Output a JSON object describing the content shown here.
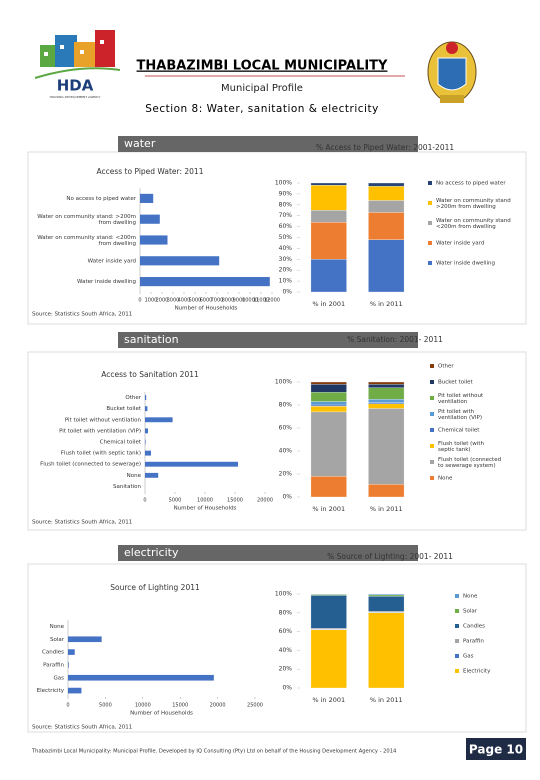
{
  "header": {
    "title": "THABAZIMBI LOCAL MUNICIPALITY",
    "subtitle": "Municipal Profile",
    "section": "Section 8: Water, sanitation & electricity",
    "logo": "HDA",
    "logo_caption": "HOUSING DEVELOPMENT AGENCY"
  },
  "sections": [
    {
      "banner": "water",
      "source": "Source: Statistics South Africa, 2011"
    },
    {
      "banner": "sanitation",
      "source": "Source: Statistics South Africa, 2011"
    },
    {
      "banner": "electricity",
      "source": "Source: Statistics South Africa, 2011"
    }
  ],
  "footer": {
    "text": "Thabazimbi Local Municipality: Municipal Profile. Developed by IQ Consulting (Pty) Ltd on behalf of the Housing Development Agency - 2014",
    "page": "Page 10"
  },
  "chart_data": [
    {
      "type": "bar",
      "orientation": "horizontal",
      "title": "Access to Piped Water: 2011",
      "categories": [
        "No access to piped water",
        "Water on community stand: >200m from dwelling",
        "Water on community stand: <200m from dwelling",
        "Water inside yard",
        "Water inside dwelling"
      ],
      "values": [
        1200,
        1800,
        2500,
        7200,
        11800
      ],
      "color": "#4472c4",
      "xlim": [
        0,
        12000
      ],
      "xticks": [
        0,
        1000,
        2000,
        3000,
        4000,
        5000,
        6000,
        7000,
        8000,
        9000,
        10000,
        11000,
        12000
      ],
      "xlabel": "Number of Households"
    },
    {
      "type": "bar",
      "stacked": true,
      "title": "% Access to Piped Water: 2001-2011",
      "categories": [
        "% in 2001",
        "% in 2011"
      ],
      "series": [
        {
          "name": "No access to piped water",
          "color": "#264478",
          "values": [
            2,
            3
          ]
        },
        {
          "name": "Water on community stand >200m from dwelling",
          "color": "#ffc000",
          "values": [
            23,
            13
          ]
        },
        {
          "name": "Water on community stand <200m from dwelling",
          "color": "#a5a5a5",
          "values": [
            11,
            11
          ]
        },
        {
          "name": "Water inside yard",
          "color": "#ed7d31",
          "values": [
            34,
            25
          ]
        },
        {
          "name": "Water inside dwelling",
          "color": "#4472c4",
          "values": [
            30,
            48
          ]
        }
      ],
      "ylim": [
        0,
        100
      ],
      "yticks": [
        {
          "value": 0,
          "label": "0%"
        },
        {
          "value": 10,
          "label": "10%"
        },
        {
          "value": 20,
          "label": "20%"
        },
        {
          "value": 30,
          "label": "30%"
        },
        {
          "value": 40,
          "label": "40%"
        },
        {
          "value": 50,
          "label": "50%"
        },
        {
          "value": 60,
          "label": "60%"
        },
        {
          "value": 70,
          "label": "70%"
        },
        {
          "value": 80,
          "label": "80%"
        },
        {
          "value": 90,
          "label": "90%"
        },
        {
          "value": 100,
          "label": "100%"
        }
      ],
      "legend": "right"
    },
    {
      "type": "bar",
      "orientation": "horizontal",
      "title": "Access to Sanitation 2011",
      "categories": [
        "Other",
        "Bucket toilet",
        "Pit toilet without ventilation",
        "Pit toilet with ventilation (VIP)",
        "Chemical toilet",
        "Flush toilet (with septic tank)",
        "Flush toilet (connected to sewerage)",
        "None",
        "Sanitation"
      ],
      "values": [
        200,
        400,
        4600,
        500,
        100,
        1000,
        15500,
        2200,
        null
      ],
      "color": "#4472c4",
      "xlim": [
        0,
        20000
      ],
      "xticks": [
        0,
        5000,
        10000,
        15000,
        20000
      ],
      "xlabel": "Number of Households"
    },
    {
      "type": "bar",
      "stacked": true,
      "title": "% Sanitation: 2001- 2011",
      "categories": [
        "% in 2001",
        "% in 2011"
      ],
      "series": [
        {
          "name": "Other",
          "color": "#843c0c",
          "values": [
            2,
            2
          ]
        },
        {
          "name": "Bucket toilet",
          "color": "#1f3864",
          "values": [
            7,
            3
          ]
        },
        {
          "name": "Pit toilet without ventilation",
          "color": "#70ad47",
          "values": [
            8,
            10
          ]
        },
        {
          "name": "Pit toilet with ventilation (VIP)",
          "color": "#5b9bd5",
          "values": [
            3,
            3
          ]
        },
        {
          "name": "Chemical toilet",
          "color": "#4472c4",
          "values": [
            1,
            1
          ]
        },
        {
          "name": "Flush toilet (with septic tank)",
          "color": "#ffc000",
          "values": [
            5,
            4
          ]
        },
        {
          "name": "Flush toilet (connected to sewerage system)",
          "color": "#a5a5a5",
          "values": [
            56,
            66
          ]
        },
        {
          "name": "None",
          "color": "#ed7d31",
          "values": [
            18,
            11
          ]
        }
      ],
      "ylim": [
        0,
        100
      ],
      "yticks": [
        {
          "value": 0,
          "label": "0%"
        },
        {
          "value": 20,
          "label": "20%"
        },
        {
          "value": 40,
          "label": "40%"
        },
        {
          "value": 60,
          "label": "60%"
        },
        {
          "value": 80,
          "label": "80%"
        },
        {
          "value": 100,
          "label": "100%"
        }
      ],
      "legend": "right"
    },
    {
      "type": "bar",
      "orientation": "horizontal",
      "title": "Source of Lighting 2011",
      "categories": [
        "None",
        "Solar",
        "Candles",
        "Paraffin",
        "Gas",
        "Electricity"
      ],
      "values": [
        0,
        4500,
        900,
        100,
        19500,
        1800
      ],
      "color": "#4472c4",
      "xlim": [
        0,
        25000
      ],
      "xticks": [
        0,
        5000,
        10000,
        15000,
        20000,
        25000
      ],
      "xlabel": "Number of Households"
    },
    {
      "type": "bar",
      "stacked": true,
      "title": "% Source of Lighting: 2001- 2011",
      "categories": [
        "% in 2001",
        "% in 2011"
      ],
      "series": [
        {
          "name": "None",
          "color": "#5b9bd5",
          "values": [
            0.5,
            1
          ]
        },
        {
          "name": "Solar",
          "color": "#70ad47",
          "values": [
            1,
            1.5
          ]
        },
        {
          "name": "Candles",
          "color": "#255e91",
          "values": [
            35,
            16
          ]
        },
        {
          "name": "Paraffin",
          "color": "#a5a5a5",
          "values": [
            1,
            1
          ]
        },
        {
          "name": "Gas",
          "color": "#4472c4",
          "values": [
            0.5,
            0.5
          ]
        },
        {
          "name": "Electricity",
          "color": "#ffc000",
          "values": [
            62,
            80
          ]
        }
      ],
      "ylim": [
        0,
        100
      ],
      "yticks": [
        {
          "value": 0,
          "label": "0%"
        },
        {
          "value": 20,
          "label": "20%"
        },
        {
          "value": 40,
          "label": "40%"
        },
        {
          "value": 60,
          "label": "60%"
        },
        {
          "value": 80,
          "label": "80%"
        },
        {
          "value": 100,
          "label": "100%"
        }
      ],
      "legend": "right"
    }
  ]
}
